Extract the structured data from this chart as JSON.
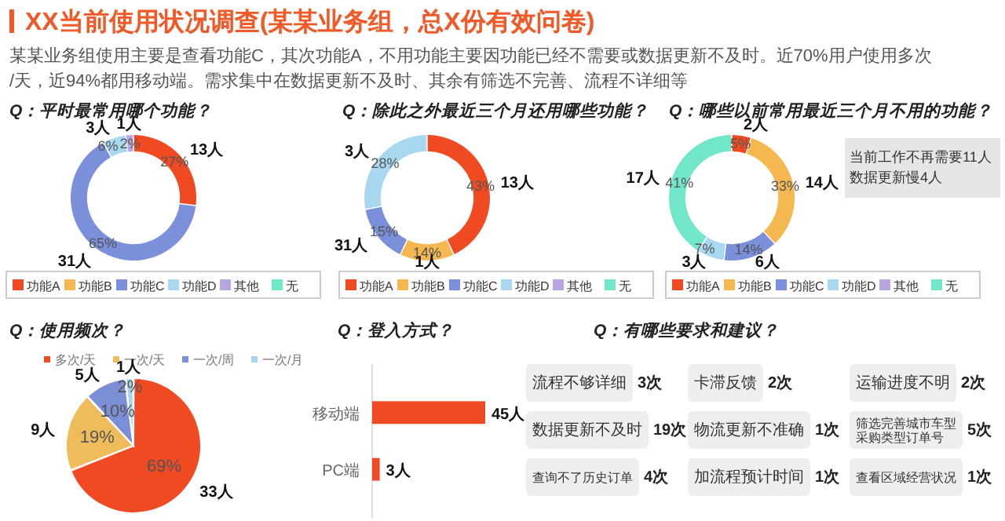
{
  "chart_data": [
    {
      "type": "other",
      "title": "XX当前使用状况调查(某某业务组，总X份有效问卷)",
      "subtitle": "某某业务组使用主要是查看功能C，其次功能A，不用功能主要因功能已经不需要或数据更新不及时。近70%用户使用多次/天，近94%都用移动端。需求集中在数据更新不及时、其余有筛选不完善、流程不详细等"
    },
    {
      "type": "donut",
      "title": "Q：平时最常用哪个功能？",
      "categories": [
        "功能A",
        "功能B",
        "功能C",
        "功能D",
        "其他",
        "无"
      ],
      "values": [
        27,
        0,
        65,
        6,
        2,
        0
      ],
      "colors": [
        "#f04a23",
        "#f5b74f",
        "#7b8fdb",
        "#a8d8f0",
        "#b8a6de",
        "#72e6c8"
      ],
      "value_labels": [
        "27%",
        null,
        "65%",
        "6%",
        "2%",
        null
      ],
      "legend": "bottom",
      "annotations": [
        {
          "text": "13人",
          "x": "功能A"
        },
        {
          "text": "31人",
          "x": "功能C"
        },
        {
          "text": "3人",
          "x": "功能D"
        },
        {
          "text": "1人",
          "x": "其他"
        }
      ]
    },
    {
      "type": "donut",
      "title": "Q：除此之外最近三个月还用哪些功能？",
      "categories": [
        "功能A",
        "功能B",
        "功能C",
        "功能D",
        "其他",
        "无"
      ],
      "values": [
        43,
        14,
        15,
        28,
        0,
        0
      ],
      "colors": [
        "#f04a23",
        "#f5b74f",
        "#7b8fdb",
        "#a8d8f0",
        "#b8a6de",
        "#72e6c8"
      ],
      "value_labels": [
        "43%",
        "14%",
        "15%",
        "28%",
        null,
        null
      ],
      "legend": "bottom",
      "annotations": [
        {
          "text": "13人",
          "x": "功能A"
        },
        {
          "text": "1人",
          "x": "功能B"
        },
        {
          "text": "31人",
          "x": "功能C"
        },
        {
          "text": "3人",
          "x": "功能D"
        }
      ]
    },
    {
      "type": "donut",
      "title": "Q：哪些以前常用最近三个月不用的功能？",
      "categories": [
        "功能A",
        "功能B",
        "功能C",
        "功能D",
        "其他",
        "无"
      ],
      "values": [
        5,
        33,
        14,
        7,
        0,
        41
      ],
      "colors": [
        "#f04a23",
        "#f5b74f",
        "#7b8fdb",
        "#a8d8f0",
        "#b8a6de",
        "#72e6c8"
      ],
      "value_labels": [
        "5%",
        "33%",
        "14%",
        "7%",
        null,
        "41%"
      ],
      "legend": "bottom",
      "annotations": [
        {
          "text": "2人",
          "x": "功能A"
        },
        {
          "text": "14人",
          "x": "功能B"
        },
        {
          "text": "6人",
          "x": "功能C"
        },
        {
          "text": "3人",
          "x": "功能D"
        },
        {
          "text": "17人",
          "x": "无"
        },
        "当前工作不再需要11人",
        "数据更新慢4人"
      ]
    },
    {
      "type": "pie",
      "title": "Q：使用频次？",
      "categories": [
        "多次/天",
        "一次/天",
        "一次/周",
        "一次/月"
      ],
      "values": [
        69,
        19,
        10,
        2
      ],
      "colors": [
        "#f04a23",
        "#eebc5a",
        "#7b8fd6",
        "#a9d4ee"
      ],
      "value_labels": [
        "69%",
        "19%",
        "10%",
        "2%"
      ],
      "legend": "top",
      "annotations": [
        {
          "text": "33人",
          "x": "多次/天"
        },
        {
          "text": "9人",
          "x": "一次/天"
        },
        {
          "text": "5人",
          "x": "一次/周"
        },
        {
          "text": "1人",
          "x": "一次/月"
        }
      ]
    },
    {
      "type": "bar",
      "orientation": "horizontal",
      "title": "Q：登入方式？",
      "categories": [
        "移动端",
        "PC端"
      ],
      "values": [
        45,
        3
      ],
      "color": "#f04a23",
      "value_labels": [
        "45人",
        "3人"
      ]
    },
    {
      "type": "other",
      "title": "Q：有哪些要求和建议？",
      "categories": [
        "流程不够详细",
        "卡滞反馈",
        "运输进度不明",
        "数据更新不及时",
        "物流更新不准确",
        "筛选完善城市车型采购类型订单号",
        "查询不了历史订单",
        "加流程预计时间",
        "查看区域经营状况"
      ],
      "values": [
        3,
        2,
        2,
        19,
        1,
        5,
        4,
        1,
        1
      ],
      "value_labels": [
        "3次",
        "2次",
        "2次",
        "19次",
        "1次",
        "5次",
        "4次",
        "1次",
        "1次"
      ]
    }
  ]
}
